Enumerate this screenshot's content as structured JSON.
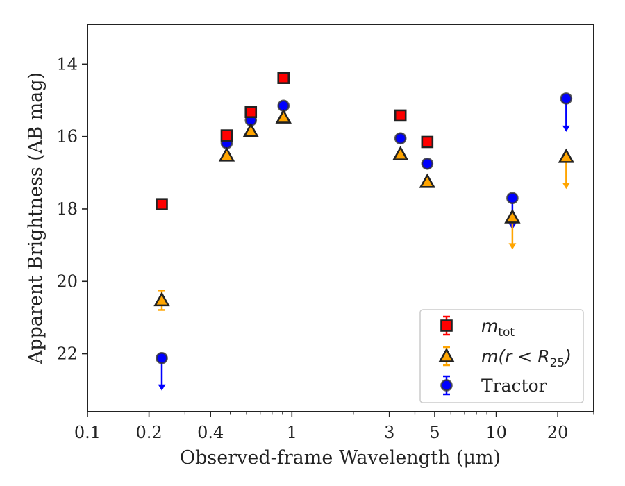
{
  "chart_data": {
    "type": "scatter",
    "title": "",
    "xlabel": "Observed-frame Wavelength (μm)",
    "ylabel": "Apparent Brightness (AB mag)",
    "xscale": "log",
    "yscale": "linear",
    "y_inverted": true,
    "xlim": [
      0.1,
      30
    ],
    "ylim": [
      23.6,
      12.9
    ],
    "x_ticks": [
      0.1,
      0.2,
      0.4,
      1,
      3,
      5,
      10,
      20
    ],
    "x_tick_labels": [
      "0.1",
      "0.2",
      "0.4",
      "1",
      "3",
      "5",
      "10",
      "20"
    ],
    "y_ticks": [
      14,
      16,
      18,
      20,
      22
    ],
    "y_tick_labels": [
      "14",
      "16",
      "18",
      "20",
      "22"
    ],
    "grid": false,
    "legend_position": "lower-right",
    "series": [
      {
        "name": "m_tot",
        "legend_text": "m",
        "legend_sub": "tot",
        "marker": "square",
        "face_color": "#ff0000",
        "edge_color": "#222222",
        "error_color": "#ff0000",
        "points": [
          {
            "x": 0.231,
            "y": 17.87
          },
          {
            "x": 0.48,
            "y": 15.97
          },
          {
            "x": 0.63,
            "y": 15.32
          },
          {
            "x": 0.91,
            "y": 14.38
          },
          {
            "x": 3.4,
            "y": 15.42
          },
          {
            "x": 4.6,
            "y": 16.15
          }
        ]
      },
      {
        "name": "m(r < R25)",
        "legend_text": "m(r < R",
        "legend_sub": "25",
        "legend_tail": ")",
        "marker": "triangle",
        "face_color": "#ffa500",
        "edge_color": "#222222",
        "error_color": "#ffa500",
        "points": [
          {
            "x": 0.231,
            "y": 20.52,
            "yerr": 0.27
          },
          {
            "x": 0.48,
            "y": 16.52
          },
          {
            "x": 0.63,
            "y": 15.85
          },
          {
            "x": 0.91,
            "y": 15.47
          },
          {
            "x": 3.4,
            "y": 16.49
          },
          {
            "x": 4.6,
            "y": 17.25
          },
          {
            "x": 12.0,
            "y": 18.23,
            "upper_limit": true,
            "arrow_to": 19.1
          },
          {
            "x": 22.0,
            "y": 16.56,
            "upper_limit": true,
            "arrow_to": 17.43
          }
        ]
      },
      {
        "name": "Tractor",
        "legend_text": "Tractor",
        "marker": "circle",
        "face_color": "#0000ff",
        "edge_color": "#333333",
        "error_color": "#0000ff",
        "points": [
          {
            "x": 0.231,
            "y": 22.12,
            "upper_limit": true,
            "arrow_to": 23.0
          },
          {
            "x": 0.48,
            "y": 16.18
          },
          {
            "x": 0.63,
            "y": 15.55
          },
          {
            "x": 0.91,
            "y": 15.15
          },
          {
            "x": 3.4,
            "y": 16.05
          },
          {
            "x": 4.6,
            "y": 16.75
          },
          {
            "x": 12.0,
            "y": 17.7,
            "upper_limit": true,
            "arrow_to": 18.55
          },
          {
            "x": 22.0,
            "y": 14.95,
            "upper_limit": true,
            "arrow_to": 15.85
          }
        ]
      }
    ]
  }
}
